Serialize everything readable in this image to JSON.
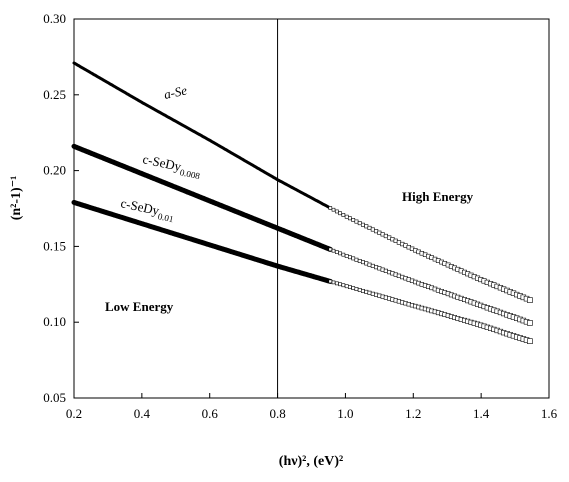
{
  "chart_data": {
    "type": "scatter",
    "xlabel": "(hν)², (eV)²",
    "ylabel": "(n²-1)⁻¹",
    "xlim": [
      0.2,
      1.6
    ],
    "ylim": [
      0.05,
      0.3
    ],
    "xticks": [
      0.2,
      0.4,
      0.6,
      0.8,
      1.0,
      1.2,
      1.4,
      1.6
    ],
    "yticks": [
      0.05,
      0.1,
      0.15,
      0.2,
      0.25,
      0.3
    ],
    "xtick_labels": [
      "0.2",
      "0.4",
      "0.6",
      "0.8",
      "1.0",
      "1.2",
      "1.4",
      "1.6"
    ],
    "ytick_labels": [
      "0.05",
      "0.10",
      "0.15",
      "0.20",
      "0.25",
      "0.30"
    ],
    "grid": false,
    "vline": 0.8,
    "series": [
      {
        "name": "a-Se",
        "x": [
          0.2,
          0.4,
          0.6,
          0.8,
          1.0,
          1.2,
          1.4,
          1.55
        ],
        "y": [
          0.271,
          0.245,
          0.22,
          0.194,
          0.17,
          0.148,
          0.128,
          0.114
        ]
      },
      {
        "name": "c-SeDy0.008",
        "x": [
          0.2,
          0.4,
          0.6,
          0.8,
          1.0,
          1.2,
          1.4,
          1.55
        ],
        "y": [
          0.216,
          0.198,
          0.18,
          0.162,
          0.144,
          0.127,
          0.111,
          0.099
        ]
      },
      {
        "name": "c-SeDy0.01",
        "x": [
          0.2,
          0.4,
          0.6,
          0.8,
          1.0,
          1.2,
          1.4,
          1.55
        ],
        "y": [
          0.179,
          0.165,
          0.151,
          0.137,
          0.124,
          0.111,
          0.098,
          0.087
        ]
      }
    ],
    "series_labels": [
      {
        "base": "a-Se",
        "sub": ""
      },
      {
        "base": "c-SeDy",
        "sub": "0.008"
      },
      {
        "base": "c-SeDy",
        "sub": "0.01"
      }
    ],
    "annotations": [
      "High Energy",
      "Low Energy"
    ]
  }
}
